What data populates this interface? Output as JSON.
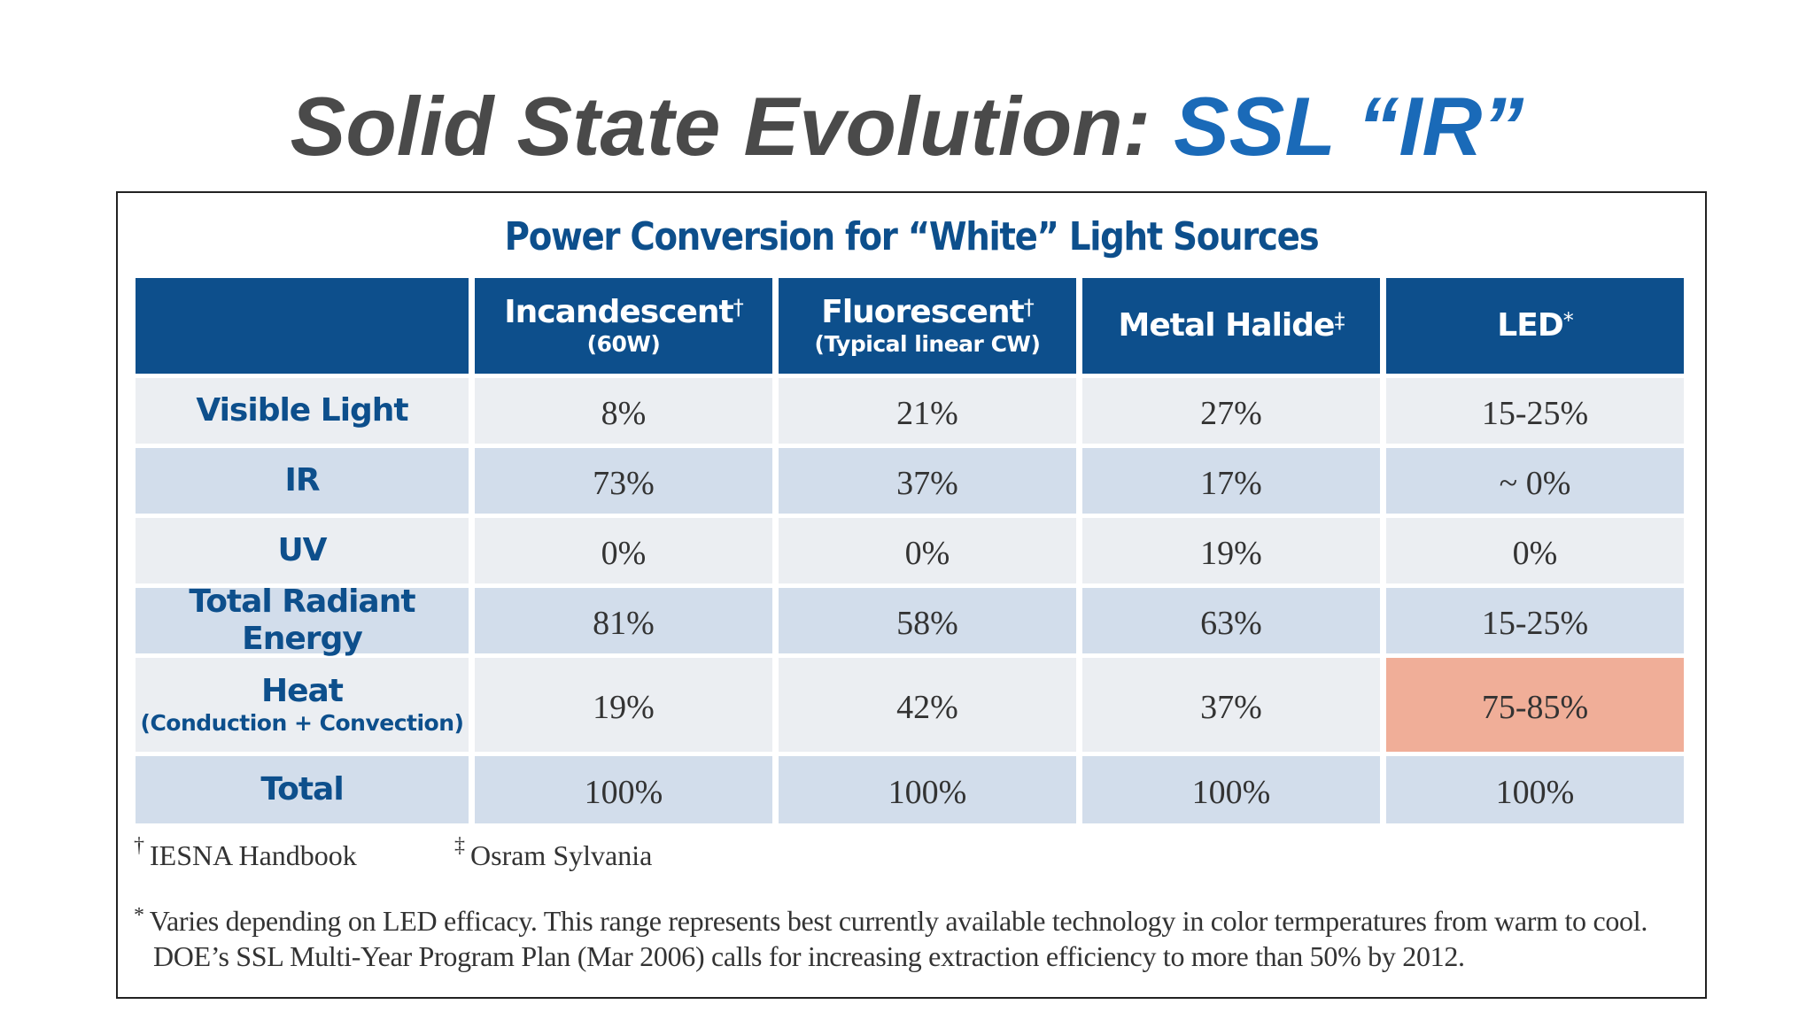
{
  "slide": {
    "title_main": "Solid State Evolution",
    "title_colon": ": ",
    "title_accent": "SSL “IR”"
  },
  "table": {
    "title": "Power Conversion for “White” Light Sources",
    "columns": [
      {
        "label": "Incandescent",
        "mark": "†",
        "sublabel": "(60W)"
      },
      {
        "label": "Fluorescent",
        "mark": "†",
        "sublabel": "(Typical linear CW)"
      },
      {
        "label": "Metal Halide",
        "mark": "‡",
        "sublabel": ""
      },
      {
        "label": "LED",
        "mark": "*",
        "sublabel": ""
      }
    ],
    "rows": [
      {
        "label": "Visible Light",
        "sublabel": "",
        "values": [
          "8%",
          "21%",
          "27%",
          "15-25%"
        ]
      },
      {
        "label": "IR",
        "sublabel": "",
        "values": [
          "73%",
          "37%",
          "17%",
          "~ 0%"
        ]
      },
      {
        "label": "UV",
        "sublabel": "",
        "values": [
          "0%",
          "0%",
          "19%",
          "0%"
        ]
      },
      {
        "label": "Total Radiant Energy",
        "sublabel": "",
        "values": [
          "81%",
          "58%",
          "63%",
          "15-25%"
        ]
      },
      {
        "label": "Heat",
        "sublabel": "(Conduction + Convection)",
        "values": [
          "19%",
          "42%",
          "37%",
          "75-85%"
        ]
      },
      {
        "label": "Total",
        "sublabel": "",
        "values": [
          "100%",
          "100%",
          "100%",
          "100%"
        ]
      }
    ],
    "highlight_color": "#f0ae98"
  },
  "footnotes": {
    "dagger_mark": "†",
    "dagger_text": "IESNA Handbook",
    "ddagger_mark": "‡",
    "ddagger_text": "Osram Sylvania",
    "asterisk_mark": "*",
    "asterisk_text": "Varies depending on LED efficacy. This range represents best currently available technology in color termperatures from warm to cool. DOE’s SSL Multi-Year Program Plan (Mar 2006) calls for increasing extraction efficiency to more than 50% by 2012."
  },
  "colors": {
    "header_blue": "#0d4f8c",
    "title_gray": "#4a4a4a",
    "title_accent_blue": "#1a6ab8",
    "row_light": "#ebeef2",
    "row_dark": "#d2ddeb"
  }
}
